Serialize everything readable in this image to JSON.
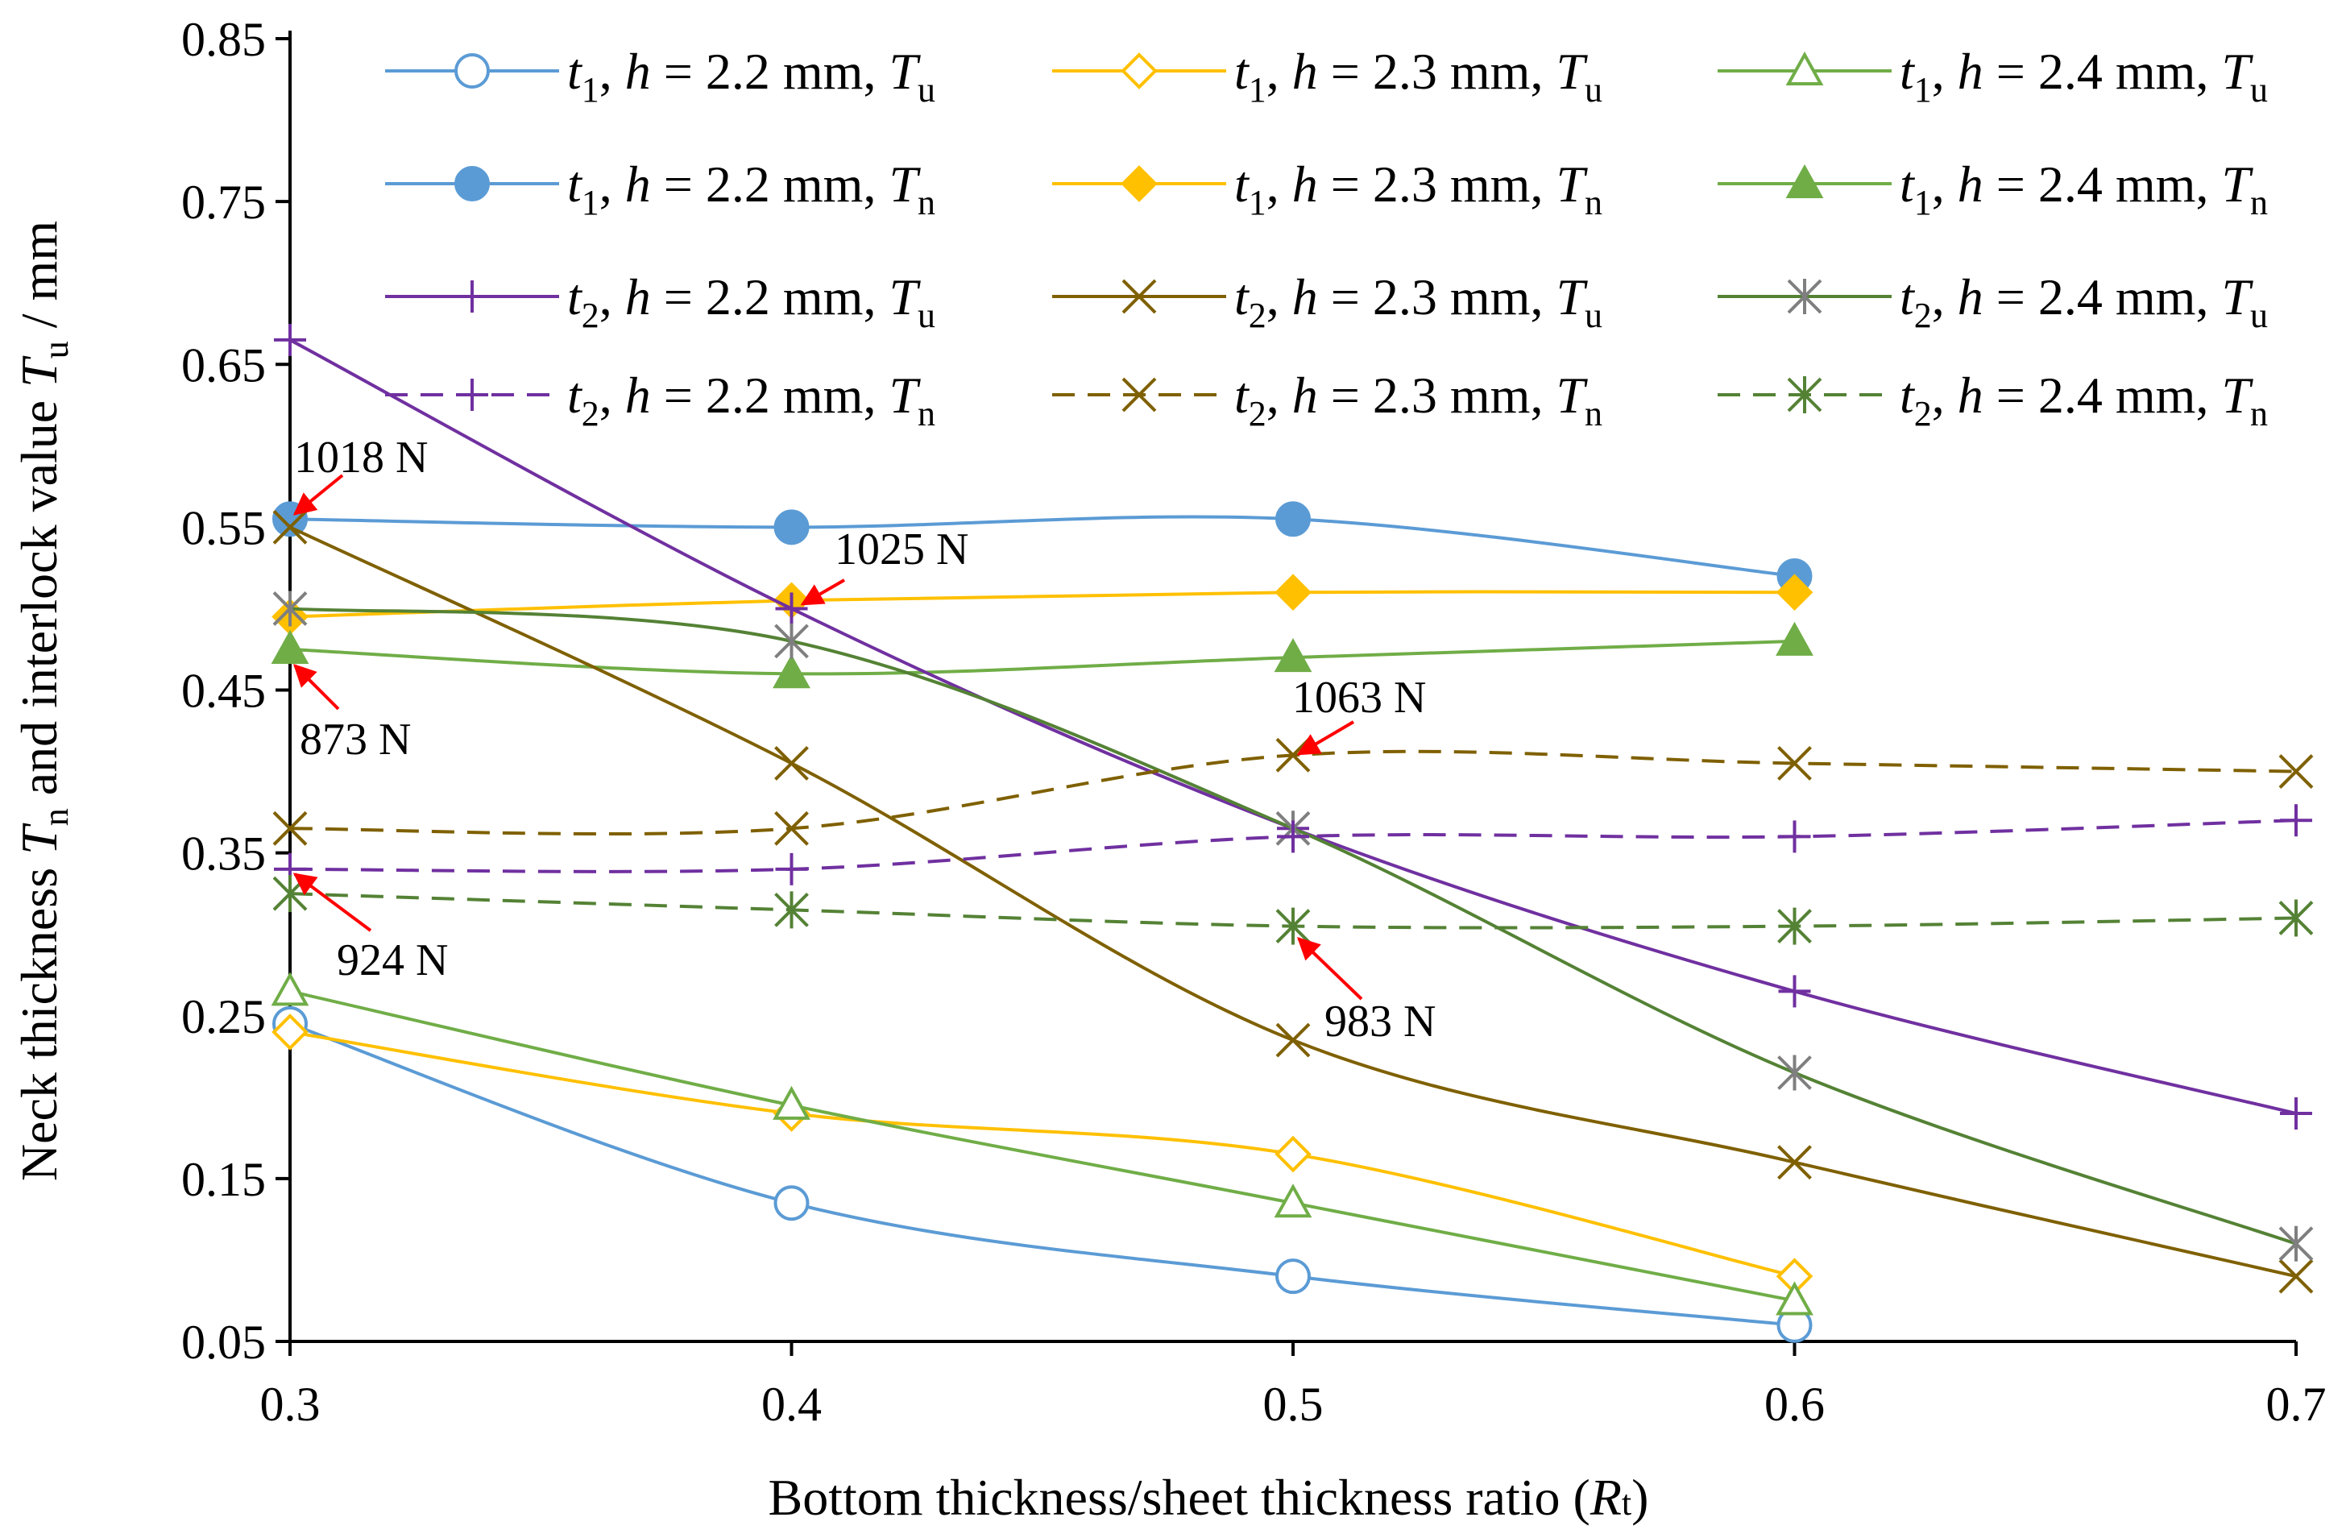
{
  "chart_data": {
    "type": "line",
    "title": "",
    "xlabel": "Bottom thickness/sheet thickness ratio (Rt)",
    "xlabel_parts": {
      "main": "Bottom thickness/sheet thickness ratio (",
      "var": "R",
      "sub": "t",
      "close": ")"
    },
    "ylabel": "Neck thickness Tn and interlock value Tu / mm",
    "ylabel_parts": {
      "p1": "Neck thickness ",
      "v1": "T",
      "s1": "n",
      "p2": " and interlock value ",
      "v2": "T",
      "s2": "u",
      "p3": " / mm"
    },
    "x_ticks": [
      "0.3",
      "0.4",
      "0.5",
      "0.6",
      "0.7"
    ],
    "y_ticks": [
      "0.05",
      "0.15",
      "0.25",
      "0.35",
      "0.45",
      "0.55",
      "0.65",
      "0.75",
      "0.85"
    ],
    "xlim": [
      0.3,
      0.7
    ],
    "ylim": [
      0.05,
      0.85
    ],
    "grid": false,
    "legend_position": "top-right",
    "series": [
      {
        "name": "t1, h = 2.2 mm, Tu",
        "label": {
          "v": "t",
          "vs": "1",
          "mid": ", ",
          "h": "h",
          "eq": " = 2.2 mm, ",
          "T": "T",
          "ts": "u"
        },
        "color": "#5b9bd5",
        "marker": "circle-open",
        "dash": "solid",
        "x": [
          0.3,
          0.4,
          0.5,
          0.6
        ],
        "values": [
          0.245,
          0.135,
          0.09,
          0.06
        ]
      },
      {
        "name": "t1, h = 2.3 mm, Tu",
        "label": {
          "v": "t",
          "vs": "1",
          "mid": ", ",
          "h": "h",
          "eq": " = 2.3 mm, ",
          "T": "T",
          "ts": "u"
        },
        "color": "#ffc000",
        "marker": "diamond-open",
        "dash": "solid",
        "x": [
          0.3,
          0.4,
          0.5,
          0.6
        ],
        "values": [
          0.24,
          0.19,
          0.165,
          0.09
        ]
      },
      {
        "name": "t1, h = 2.4 mm, Tu",
        "label": {
          "v": "t",
          "vs": "1",
          "mid": ", ",
          "h": "h",
          "eq": " = 2.4 mm, ",
          "T": "T",
          "ts": "u"
        },
        "color": "#70ad47",
        "marker": "triangle-open",
        "dash": "solid",
        "x": [
          0.3,
          0.4,
          0.5,
          0.6
        ],
        "values": [
          0.265,
          0.195,
          0.135,
          0.075
        ]
      },
      {
        "name": "t1, h = 2.2 mm, Tn",
        "label": {
          "v": "t",
          "vs": "1",
          "mid": ", ",
          "h": "h",
          "eq": " = 2.2 mm, ",
          "T": "T",
          "ts": "n"
        },
        "color": "#5b9bd5",
        "marker": "circle-filled",
        "dash": "solid",
        "x": [
          0.3,
          0.4,
          0.5,
          0.6
        ],
        "values": [
          0.555,
          0.55,
          0.555,
          0.52
        ]
      },
      {
        "name": "t1, h = 2.3 mm, Tn",
        "label": {
          "v": "t",
          "vs": "1",
          "mid": ", ",
          "h": "h",
          "eq": " = 2.3 mm, ",
          "T": "T",
          "ts": "n"
        },
        "color": "#ffc000",
        "marker": "diamond-filled",
        "dash": "solid",
        "x": [
          0.3,
          0.4,
          0.5,
          0.6
        ],
        "values": [
          0.495,
          0.505,
          0.51,
          0.51
        ]
      },
      {
        "name": "t1, h = 2.4 mm, Tn",
        "label": {
          "v": "t",
          "vs": "1",
          "mid": ", ",
          "h": "h",
          "eq": " = 2.4 mm, ",
          "T": "T",
          "ts": "n"
        },
        "color": "#70ad47",
        "marker": "triangle-filled",
        "dash": "solid",
        "x": [
          0.3,
          0.4,
          0.5,
          0.6
        ],
        "values": [
          0.475,
          0.46,
          0.47,
          0.48
        ]
      },
      {
        "name": "t2, h = 2.2 mm, Tu",
        "label": {
          "v": "t",
          "vs": "2",
          "mid": ", ",
          "h": "h",
          "eq": " = 2.2 mm, ",
          "T": "T",
          "ts": "u"
        },
        "color": "#7030a0",
        "marker": "plus",
        "dash": "solid",
        "x": [
          0.3,
          0.4,
          0.5,
          0.6,
          0.7
        ],
        "values": [
          0.665,
          0.5,
          0.365,
          0.265,
          0.19
        ]
      },
      {
        "name": "t2, h = 2.3 mm, Tu",
        "label": {
          "v": "t",
          "vs": "2",
          "mid": ", ",
          "h": "h",
          "eq": " = 2.3 mm, ",
          "T": "T",
          "ts": "u"
        },
        "color": "#7f6000",
        "marker": "x",
        "dash": "solid",
        "x": [
          0.3,
          0.4,
          0.5,
          0.6,
          0.7
        ],
        "values": [
          0.55,
          0.405,
          0.235,
          0.16,
          0.09
        ]
      },
      {
        "name": "t2, h = 2.4 mm, Tu",
        "label": {
          "v": "t",
          "vs": "2",
          "mid": ", ",
          "h": "h",
          "eq": " = 2.4 mm, ",
          "T": "T",
          "ts": "u"
        },
        "color": "#548235",
        "marker": "x-gray",
        "dash": "solid",
        "x": [
          0.3,
          0.4,
          0.5,
          0.6,
          0.7
        ],
        "values": [
          0.5,
          0.48,
          0.365,
          0.215,
          0.11
        ]
      },
      {
        "name": "t2, h = 2.2 mm, Tn",
        "label": {
          "v": "t",
          "vs": "2",
          "mid": ", ",
          "h": "h",
          "eq": " = 2.2 mm, ",
          "T": "T",
          "ts": "n"
        },
        "color": "#7030a0",
        "marker": "plus",
        "dash": "dashed",
        "x": [
          0.3,
          0.4,
          0.5,
          0.6,
          0.7
        ],
        "values": [
          0.34,
          0.34,
          0.36,
          0.36,
          0.37
        ]
      },
      {
        "name": "t2, h = 2.3 mm, Tn",
        "label": {
          "v": "t",
          "vs": "2",
          "mid": ", ",
          "h": "h",
          "eq": " = 2.3 mm, ",
          "T": "T",
          "ts": "n"
        },
        "color": "#7f6000",
        "marker": "x",
        "dash": "dashed",
        "x": [
          0.3,
          0.4,
          0.5,
          0.6,
          0.7
        ],
        "values": [
          0.365,
          0.365,
          0.41,
          0.405,
          0.4
        ]
      },
      {
        "name": "t2, h = 2.4 mm, Tn",
        "label": {
          "v": "t",
          "vs": "2",
          "mid": ", ",
          "h": "h",
          "eq": " = 2.4 mm, ",
          "T": "T",
          "ts": "n"
        },
        "color": "#548235",
        "marker": "asterisk",
        "dash": "dashed",
        "x": [
          0.3,
          0.4,
          0.5,
          0.6,
          0.7
        ],
        "values": [
          0.325,
          0.315,
          0.305,
          0.305,
          0.31
        ]
      }
    ],
    "annotations": [
      {
        "text": "1018 N",
        "x": 0.3,
        "y": 0.555
      },
      {
        "text": "1025 N",
        "x": 0.4,
        "y": 0.505
      },
      {
        "text": "873 N",
        "x": 0.3,
        "y": 0.475
      },
      {
        "text": "1063 N",
        "x": 0.5,
        "y": 0.41
      },
      {
        "text": "924 N",
        "x": 0.3,
        "y": 0.34
      },
      {
        "text": "983 N",
        "x": 0.5,
        "y": 0.305
      }
    ],
    "arrow_color": "#ff0000"
  }
}
